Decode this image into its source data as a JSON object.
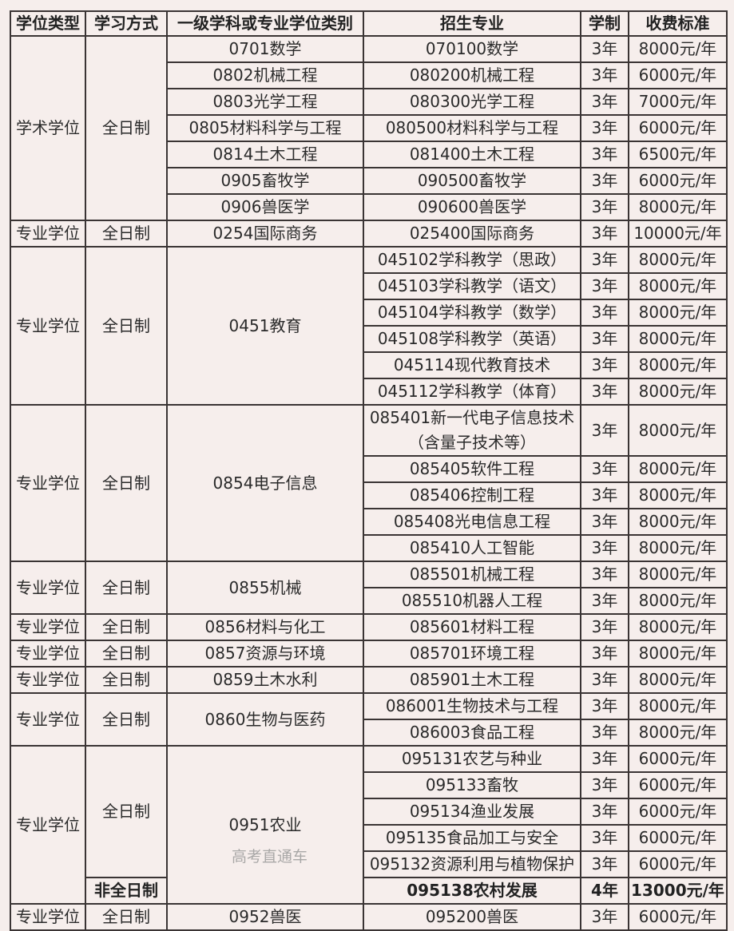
{
  "headers": [
    "学位类型",
    "学习方式",
    "一级学科或专业学位类别",
    "招生专业",
    "学制",
    "收费标准"
  ],
  "groups": [
    {
      "degree_type": "学术学位",
      "modes": [
        {
          "mode": "全日制",
          "bold": false,
          "rows": [
            {
              "discipline": "0701数学",
              "major": "070100数学",
              "years": "3年",
              "fee": "8000元/年"
            },
            {
              "discipline": "0802机械工程",
              "major": "080200机械工程",
              "years": "3年",
              "fee": "6000元/年"
            },
            {
              "discipline": "0803光学工程",
              "major": "080300光学工程",
              "years": "3年",
              "fee": "7000元/年"
            },
            {
              "discipline": "0805材料科学与工程",
              "major": "080500材料科学与工程",
              "years": "3年",
              "fee": "6000元/年"
            },
            {
              "discipline": "0814土木工程",
              "major": "081400土木工程",
              "years": "3年",
              "fee": "6500元/年"
            },
            {
              "discipline": "0905畜牧学",
              "major": "090500畜牧学",
              "years": "3年",
              "fee": "6000元/年"
            },
            {
              "discipline": "0906兽医学",
              "major": "090600兽医学",
              "years": "3年",
              "fee": "8000元/年"
            }
          ]
        }
      ]
    },
    {
      "degree_type": "专业学位",
      "modes": [
        {
          "mode": "全日制",
          "bold": false,
          "rows": [
            {
              "discipline": "0254国际商务",
              "major": "025400国际商务",
              "years": "3年",
              "fee": "10000元/年"
            }
          ]
        }
      ]
    },
    {
      "degree_type": "专业学位",
      "modes": [
        {
          "mode": "全日制",
          "bold": false,
          "rows": [
            {
              "discipline": "0451教育",
              "major": "045102学科教学（思政）",
              "years": "3年",
              "fee": "8000元/年"
            },
            {
              "discipline": "0451教育",
              "major": "045103学科教学（语文）",
              "years": "3年",
              "fee": "8000元/年"
            },
            {
              "discipline": "0451教育",
              "major": "045104学科教学（数学）",
              "years": "3年",
              "fee": "8000元/年"
            },
            {
              "discipline": "0451教育",
              "major": "045108学科教学（英语）",
              "years": "3年",
              "fee": "8000元/年"
            },
            {
              "discipline": "0451教育",
              "major": "045114现代教育技术",
              "years": "3年",
              "fee": "8000元/年"
            },
            {
              "discipline": "0451教育",
              "major": "045112学科教学（体育）",
              "years": "3年",
              "fee": "8000元/年"
            }
          ]
        }
      ]
    },
    {
      "degree_type": "专业学位",
      "modes": [
        {
          "mode": "全日制",
          "bold": false,
          "rows": [
            {
              "discipline": "0854电子信息",
              "major": "085401新一代电子信息技术（含量子技术等）",
              "years": "3年",
              "fee": "8000元/年"
            },
            {
              "discipline": "0854电子信息",
              "major": "085405软件工程",
              "years": "3年",
              "fee": "8000元/年"
            },
            {
              "discipline": "0854电子信息",
              "major": "085406控制工程",
              "years": "3年",
              "fee": "8000元/年"
            },
            {
              "discipline": "0854电子信息",
              "major": "085408光电信息工程",
              "years": "3年",
              "fee": "8000元/年"
            },
            {
              "discipline": "0854电子信息",
              "major": "085410人工智能",
              "years": "3年",
              "fee": "8000元/年"
            }
          ]
        }
      ]
    },
    {
      "degree_type": "专业学位",
      "modes": [
        {
          "mode": "全日制",
          "bold": false,
          "rows": [
            {
              "discipline": "0855机械",
              "major": "085501机械工程",
              "years": "3年",
              "fee": "8000元/年"
            },
            {
              "discipline": "0855机械",
              "major": "085510机器人工程",
              "years": "3年",
              "fee": "8000元/年"
            }
          ]
        }
      ]
    },
    {
      "degree_type": "专业学位",
      "modes": [
        {
          "mode": "全日制",
          "bold": false,
          "rows": [
            {
              "discipline": "0856材料与化工",
              "major": "085601材料工程",
              "years": "3年",
              "fee": "8000元/年"
            }
          ]
        }
      ]
    },
    {
      "degree_type": "专业学位",
      "modes": [
        {
          "mode": "全日制",
          "bold": false,
          "rows": [
            {
              "discipline": "0857资源与环境",
              "major": "085701环境工程",
              "years": "3年",
              "fee": "8000元/年"
            }
          ]
        }
      ]
    },
    {
      "degree_type": "专业学位",
      "modes": [
        {
          "mode": "全日制",
          "bold": false,
          "rows": [
            {
              "discipline": "0859土木水利",
              "major": "085901土木工程",
              "years": "3年",
              "fee": "8000元/年"
            }
          ]
        }
      ]
    },
    {
      "degree_type": "专业学位",
      "modes": [
        {
          "mode": "全日制",
          "bold": false,
          "rows": [
            {
              "discipline": "0860生物与医药",
              "major": "086001生物技术与工程",
              "years": "3年",
              "fee": "8000元/年"
            },
            {
              "discipline": "0860生物与医药",
              "major": "086003食品工程",
              "years": "3年",
              "fee": "8000元/年"
            }
          ]
        }
      ]
    },
    {
      "degree_type": "专业学位",
      "modes": [
        {
          "mode": "全日制",
          "bold": false,
          "rows": [
            {
              "discipline": "0951农业",
              "major": "095131农艺与种业",
              "years": "3年",
              "fee": "6000元/年"
            },
            {
              "discipline": "0951农业",
              "major": "095133畜牧",
              "years": "3年",
              "fee": "6000元/年"
            },
            {
              "discipline": "0951农业",
              "major": "095134渔业发展",
              "years": "3年",
              "fee": "6000元/年"
            },
            {
              "discipline": "0951农业",
              "major": "095135食品加工与安全",
              "years": "3年",
              "fee": "6000元/年"
            },
            {
              "discipline": "0951农业",
              "major": "095132资源利用与植物保护",
              "years": "3年",
              "fee": "6000元/年"
            }
          ]
        },
        {
          "mode": "非全日制",
          "bold": true,
          "rows": [
            {
              "discipline": "0951农业",
              "major": "095138农村发展",
              "years": "4年",
              "fee": "13000元/年"
            }
          ]
        }
      ]
    },
    {
      "degree_type": "专业学位",
      "modes": [
        {
          "mode": "全日制",
          "bold": false,
          "rows": [
            {
              "discipline": "0952兽医",
              "major": "095200兽医",
              "years": "3年",
              "fee": "6000元/年"
            }
          ]
        }
      ]
    }
  ],
  "watermark": "高考直通车"
}
